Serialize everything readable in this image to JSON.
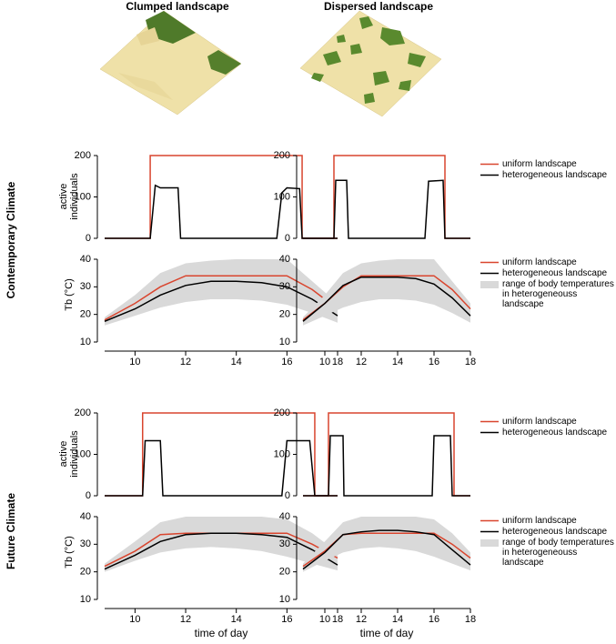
{
  "column_titles": [
    "Clumped landscape",
    "Dispersed landscape"
  ],
  "row_labels": [
    "Contemporary Climate",
    "Future Climate"
  ],
  "chart_data": [
    {
      "type": "line",
      "ylabel": "active individuals",
      "xlim": [
        8.8,
        18
      ],
      "ylim": [
        0,
        200
      ],
      "yticks": [
        0,
        100,
        200
      ],
      "series": [
        {
          "color": "#d9452e",
          "x": [
            8.8,
            10.6,
            10.6,
            16.6,
            16.6,
            18
          ],
          "values": [
            0,
            0,
            200,
            200,
            0,
            0
          ]
        },
        {
          "color": "#000000",
          "x": [
            8.8,
            10.6,
            10.8,
            11.0,
            11.7,
            11.8,
            15.6,
            15.8,
            16.0,
            16.5,
            16.6,
            18
          ],
          "values": [
            0,
            0,
            128,
            122,
            122,
            0,
            0,
            110,
            122,
            120,
            0,
            0
          ]
        }
      ]
    },
    {
      "type": "line",
      "xlim": [
        8.8,
        18
      ],
      "ylim": [
        0,
        200
      ],
      "yticks": [
        0,
        100,
        200
      ],
      "legend": "right",
      "series": [
        {
          "name": "uniform landscape",
          "color": "#d9452e",
          "x": [
            8.8,
            10.5,
            10.5,
            16.6,
            16.6,
            18
          ],
          "values": [
            0,
            0,
            200,
            200,
            0,
            0
          ]
        },
        {
          "name": "heterogeneous landscape",
          "color": "#000000",
          "x": [
            8.8,
            10.5,
            10.6,
            11.2,
            11.3,
            15.5,
            15.7,
            16.5,
            16.6,
            18
          ],
          "values": [
            0,
            0,
            140,
            140,
            0,
            0,
            138,
            140,
            0,
            0
          ]
        }
      ]
    },
    {
      "type": "line",
      "ylabel": "Tb (°C)",
      "xlim": [
        8.8,
        18
      ],
      "ylim": [
        10,
        40
      ],
      "yticks": [
        10,
        20,
        30,
        40
      ],
      "xticks": [
        10,
        12,
        14,
        16,
        18
      ],
      "series": [
        {
          "color": "#d9d9d9",
          "x": [
            8.8,
            10,
            11,
            12,
            13,
            14,
            15,
            16,
            17,
            18
          ],
          "low": [
            16,
            19.5,
            22.5,
            24.5,
            25.5,
            25.5,
            25,
            23.5,
            20.5,
            17
          ],
          "high": [
            19,
            27,
            35,
            38.5,
            39.5,
            40,
            40,
            40,
            32,
            24
          ]
        },
        {
          "color": "#d9452e",
          "x": [
            8.8,
            10,
            11,
            12,
            13,
            14,
            15,
            16,
            17,
            18
          ],
          "values": [
            18,
            24,
            30,
            34,
            34,
            34,
            34,
            34,
            29,
            22
          ]
        },
        {
          "color": "#000000",
          "x": [
            8.8,
            10,
            11,
            12,
            13,
            14,
            15,
            16,
            17,
            18
          ],
          "values": [
            17.5,
            22,
            27,
            30.5,
            32,
            32,
            31.5,
            30,
            25.5,
            19.5
          ]
        }
      ]
    },
    {
      "type": "line",
      "xlim": [
        8.8,
        18
      ],
      "ylim": [
        10,
        40
      ],
      "yticks": [
        10,
        20,
        30,
        40
      ],
      "xticks": [
        10,
        12,
        14,
        16,
        18
      ],
      "legend": "right",
      "series": [
        {
          "name": "range of body temperatures in heterogeneouss landscape",
          "color": "#d9d9d9",
          "x": [
            8.8,
            10,
            11,
            12,
            13,
            14,
            15,
            16,
            17,
            18
          ],
          "low": [
            16,
            19.5,
            22.5,
            24.5,
            25.5,
            25.5,
            25,
            23.5,
            20.5,
            17
          ],
          "high": [
            19,
            27,
            35,
            38.5,
            39.5,
            40,
            40,
            40,
            32,
            24
          ]
        },
        {
          "name": "uniform landscape",
          "color": "#d9452e",
          "x": [
            8.8,
            10,
            11,
            12,
            13,
            14,
            15,
            16,
            17,
            18
          ],
          "values": [
            18,
            24,
            30,
            34,
            34,
            34,
            34,
            34,
            29,
            22
          ]
        },
        {
          "name": "heterogeneous landscape",
          "color": "#000000",
          "x": [
            8.8,
            10,
            11,
            12,
            13,
            14,
            15,
            16,
            17,
            18
          ],
          "values": [
            17.5,
            24,
            30.5,
            33.5,
            33.5,
            33.5,
            33,
            31,
            26,
            19.5
          ]
        }
      ]
    },
    {
      "type": "line",
      "ylabel": "active individuals",
      "xlim": [
        8.8,
        18
      ],
      "ylim": [
        0,
        200
      ],
      "yticks": [
        0,
        100,
        200
      ],
      "series": [
        {
          "color": "#d9452e",
          "x": [
            8.8,
            10.3,
            10.3,
            17.1,
            17.1,
            18
          ],
          "values": [
            0,
            0,
            200,
            200,
            0,
            0
          ]
        },
        {
          "color": "#000000",
          "x": [
            8.8,
            10.3,
            10.4,
            11.0,
            11.1,
            15.8,
            16.0,
            16.9,
            17.1,
            18
          ],
          "values": [
            0,
            0,
            133,
            133,
            0,
            0,
            133,
            133,
            0,
            0
          ]
        }
      ]
    },
    {
      "type": "line",
      "xlim": [
        8.8,
        18
      ],
      "ylim": [
        0,
        200
      ],
      "yticks": [
        0,
        100,
        200
      ],
      "legend": "right",
      "series": [
        {
          "name": "uniform landscape",
          "color": "#d9452e",
          "x": [
            8.8,
            10.2,
            10.2,
            17.1,
            17.1,
            18
          ],
          "values": [
            0,
            0,
            200,
            200,
            0,
            0
          ]
        },
        {
          "name": "heterogeneous landscape",
          "color": "#000000",
          "x": [
            8.8,
            10.2,
            10.3,
            11.0,
            11.05,
            15.9,
            16.0,
            16.9,
            17.0,
            18
          ],
          "values": [
            0,
            0,
            145,
            145,
            0,
            0,
            145,
            145,
            0,
            0
          ]
        }
      ]
    },
    {
      "type": "line",
      "ylabel": "Tb (°C)",
      "xlabel": "time of day",
      "xlim": [
        8.8,
        18
      ],
      "ylim": [
        10,
        40
      ],
      "yticks": [
        10,
        20,
        30,
        40
      ],
      "xticks": [
        10,
        12,
        14,
        16,
        18
      ],
      "series": [
        {
          "color": "#d9d9d9",
          "x": [
            8.8,
            10,
            11,
            12,
            13,
            14,
            15,
            16,
            17,
            18
          ],
          "low": [
            20,
            24,
            27,
            28.5,
            29,
            28.5,
            27.5,
            25.5,
            23,
            20.5
          ],
          "high": [
            23,
            31,
            38,
            40,
            40,
            40,
            40,
            39,
            34,
            27
          ]
        },
        {
          "color": "#d9452e",
          "x": [
            8.8,
            10,
            11,
            12,
            13,
            14,
            15,
            16,
            17,
            18
          ],
          "values": [
            22,
            27.5,
            33.5,
            34,
            34,
            34,
            34,
            34,
            30,
            25
          ]
        },
        {
          "color": "#000000",
          "x": [
            8.8,
            10,
            11,
            12,
            13,
            14,
            15,
            16,
            17,
            18
          ],
          "values": [
            21,
            26,
            31,
            33.5,
            34,
            34,
            33.5,
            32.5,
            28,
            22.5
          ]
        }
      ]
    },
    {
      "type": "line",
      "xlabel": "time of day",
      "xlim": [
        8.8,
        18
      ],
      "ylim": [
        10,
        40
      ],
      "yticks": [
        10,
        20,
        30,
        40
      ],
      "xticks": [
        10,
        12,
        14,
        16,
        18
      ],
      "legend": "right",
      "series": [
        {
          "name": "range of body temperatures in heterogeneouss landscape",
          "color": "#d9d9d9",
          "x": [
            8.8,
            10,
            11,
            12,
            13,
            14,
            15,
            16,
            17,
            18
          ],
          "low": [
            20,
            24,
            27,
            28.5,
            29,
            28.5,
            27.5,
            25.5,
            23,
            20.5
          ],
          "high": [
            23,
            31,
            38,
            40,
            40,
            40,
            40,
            39,
            34,
            27
          ]
        },
        {
          "name": "uniform landscape",
          "color": "#d9452e",
          "x": [
            8.8,
            10,
            11,
            12,
            13,
            14,
            15,
            16,
            17,
            18
          ],
          "values": [
            22,
            27.5,
            33.5,
            34,
            34,
            34,
            34,
            34,
            30,
            25
          ]
        },
        {
          "name": "heterogeneous landscape",
          "color": "#000000",
          "x": [
            8.8,
            10,
            11,
            12,
            13,
            14,
            15,
            16,
            17,
            18
          ],
          "values": [
            21,
            27,
            33.5,
            34.5,
            35,
            35,
            34.5,
            33.5,
            28,
            22.5
          ]
        }
      ]
    }
  ]
}
